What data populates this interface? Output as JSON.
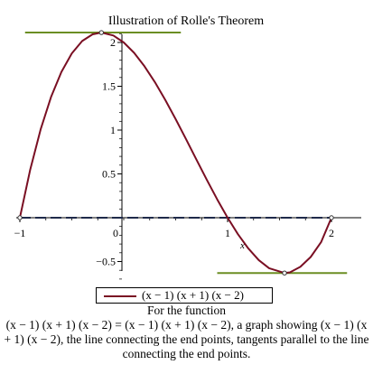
{
  "chart_data": {
    "type": "line",
    "title": "Illustration of Rolle's Theorem",
    "xlabel": "x",
    "ylabel": "",
    "xlim": [
      -1,
      2.15
    ],
    "ylim": [
      -0.72,
      2.15
    ],
    "x_ticks": [
      -1,
      0,
      1,
      2
    ],
    "x_tick_labels": [
      "−1",
      "0",
      "1",
      "2"
    ],
    "y_ticks": [
      -0.5,
      0.5,
      1,
      1.5,
      2
    ],
    "y_tick_labels": [
      "−0.5",
      "0.5",
      "1",
      "1.5",
      "2"
    ],
    "function": "(x-1)(x+1)(x-2)",
    "series": [
      {
        "name": "(x − 1) (x + 1) (x − 2)",
        "color": "#7a0f23",
        "x": [
          -1,
          -0.9,
          -0.8,
          -0.7,
          -0.6,
          -0.5,
          -0.4,
          -0.3,
          -0.215,
          -0.1,
          0,
          0.1,
          0.2,
          0.3,
          0.4,
          0.5,
          0.6,
          0.7,
          0.8,
          0.9,
          1,
          1.1,
          1.2,
          1.3,
          1.4,
          1.548,
          1.6,
          1.7,
          1.8,
          1.9,
          2
        ],
        "y": [
          0,
          0.551,
          1.008,
          1.377,
          1.664,
          1.875,
          2.016,
          2.093,
          2.113,
          2.079,
          2,
          1.881,
          1.728,
          1.547,
          1.344,
          1.125,
          0.896,
          0.663,
          0.432,
          0.209,
          0,
          -0.189,
          -0.352,
          -0.483,
          -0.576,
          -0.631,
          -0.624,
          -0.561,
          -0.448,
          -0.279,
          0
        ]
      }
    ],
    "secant_line": {
      "x": [
        -1,
        2
      ],
      "y": [
        0,
        0
      ],
      "color": "#1f2a4a",
      "style": "dashed"
    },
    "tangent_lines": [
      {
        "x": [
          -0.215
        ],
        "y": [
          2.113
        ],
        "color": "#6b8e23"
      },
      {
        "x": [
          1.548
        ],
        "y": [
          -0.631
        ],
        "color": "#6b8e23"
      }
    ],
    "marked_points": [
      {
        "x": -1,
        "y": 0
      },
      {
        "x": 2,
        "y": 0
      },
      {
        "x": -0.215,
        "y": 2.113
      },
      {
        "x": 1.548,
        "y": -0.631
      }
    ],
    "legend": {
      "position": "bottom",
      "entries": [
        "(x − 1) (x + 1) (x − 2)"
      ]
    },
    "grid": false,
    "caption": {
      "title": "For the function",
      "body": "(x − 1) (x + 1) (x − 2) = (x − 1) (x + 1) (x − 2), a graph showing (x − 1) (x + 1) (x − 2), the line connecting the end points, tangents parallel to the line connecting the end points."
    }
  }
}
